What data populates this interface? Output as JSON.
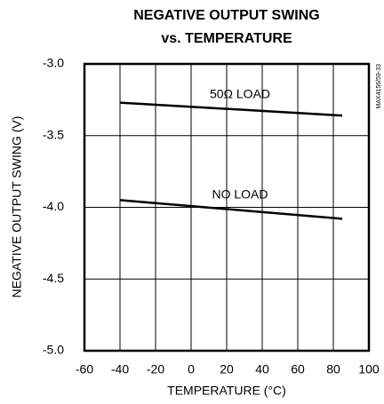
{
  "chart_data": {
    "type": "line",
    "title": "NEGATIVE OUTPUT SWING",
    "subtitle": "vs. TEMPERATURE",
    "x_label": "TEMPERATURE (°C)",
    "y_label": "NEGATIVE OUTPUT SWING (V)",
    "annotation": "MAX4156/59-33",
    "x": [
      -40,
      85
    ],
    "series": [
      {
        "name": "50Ω LOAD",
        "color": "#000000",
        "values": [
          -3.27,
          -3.36
        ]
      },
      {
        "name": "NO LOAD",
        "color": "#000000",
        "values": [
          -3.95,
          -4.08
        ]
      }
    ],
    "xlim": [
      -60,
      100
    ],
    "xticks": [
      -60,
      -40,
      -20,
      0,
      20,
      40,
      60,
      80,
      100
    ],
    "ylim": [
      -5,
      -3
    ],
    "yticks": [
      {
        "value": -5,
        "label": "-5.0"
      },
      -4.5,
      {
        "value": -4,
        "label": "-4.0"
      },
      -3.5,
      {
        "value": -3,
        "label": "-3.0"
      }
    ],
    "grid": true
  }
}
